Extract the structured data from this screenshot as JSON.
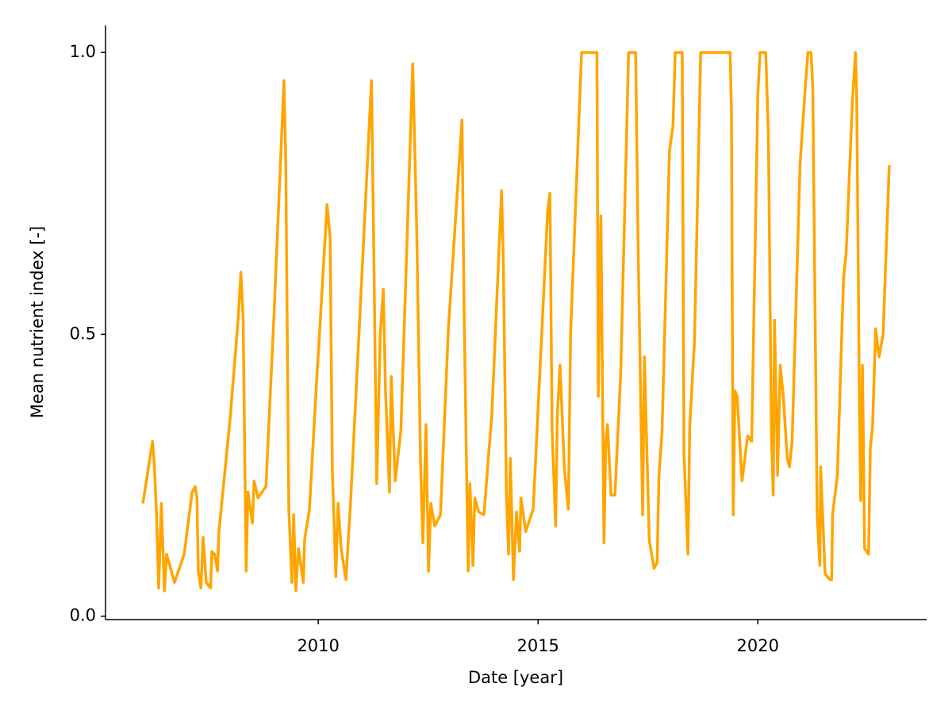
{
  "chart_data": {
    "type": "line",
    "xlabel": "Date [year]",
    "ylabel": "Mean nutrient index [-]",
    "color": "#ffa500",
    "grid": false,
    "xlim": [
      2005.16,
      2023.84
    ],
    "ylim": [
      -0.006,
      1.048
    ],
    "xticks": [
      2010,
      2015,
      2020
    ],
    "yticks": [
      {
        "value": 0,
        "label": "0.0"
      },
      0.5,
      {
        "value": 1,
        "label": "1.0"
      }
    ],
    "x": [
      2006.01,
      2006.23,
      2006.27,
      2006.32,
      2006.37,
      2006.43,
      2006.5,
      2006.55,
      2006.73,
      2006.95,
      2007.13,
      2007.2,
      2007.24,
      2007.27,
      2007.33,
      2007.38,
      2007.45,
      2007.55,
      2007.58,
      2007.64,
      2007.71,
      2007.74,
      2008.0,
      2008.18,
      2008.24,
      2008.29,
      2008.36,
      2008.4,
      2008.5,
      2008.54,
      2008.63,
      2008.81,
      2008.99,
      2009.22,
      2009.26,
      2009.33,
      2009.4,
      2009.44,
      2009.49,
      2009.55,
      2009.66,
      2009.69,
      2009.8,
      2009.95,
      2010.02,
      2010.2,
      2010.27,
      2010.32,
      2010.4,
      2010.45,
      2010.52,
      2010.63,
      2010.74,
      2010.99,
      2011.21,
      2011.26,
      2011.33,
      2011.41,
      2011.48,
      2011.53,
      2011.62,
      2011.66,
      2011.75,
      2011.88,
      2012.15,
      2012.24,
      2012.33,
      2012.38,
      2012.45,
      2012.51,
      2012.56,
      2012.65,
      2012.78,
      2012.96,
      2013.27,
      2013.32,
      2013.41,
      2013.45,
      2013.52,
      2013.56,
      2013.65,
      2013.77,
      2013.95,
      2014.17,
      2014.21,
      2014.28,
      2014.33,
      2014.37,
      2014.44,
      2014.51,
      2014.58,
      2014.61,
      2014.72,
      2014.89,
      2015.22,
      2015.27,
      2015.32,
      2015.4,
      2015.44,
      2015.5,
      2015.6,
      2015.69,
      2015.74,
      2015.99,
      2016.34,
      2016.37,
      2016.43,
      2016.5,
      2016.54,
      2016.58,
      2016.66,
      2016.75,
      2016.88,
      2017.06,
      2017.22,
      2017.28,
      2017.38,
      2017.42,
      2017.53,
      2017.64,
      2017.71,
      2017.75,
      2017.82,
      2017.99,
      2018.07,
      2018.12,
      2018.28,
      2018.32,
      2018.41,
      2018.45,
      2018.56,
      2018.7,
      2019.37,
      2019.4,
      2019.44,
      2019.48,
      2019.53,
      2019.64,
      2019.77,
      2019.86,
      2020.0,
      2020.05,
      2020.18,
      2020.24,
      2020.31,
      2020.35,
      2020.38,
      2020.45,
      2020.51,
      2020.58,
      2020.67,
      2020.72,
      2020.78,
      2020.96,
      2021.08,
      2021.14,
      2021.21,
      2021.25,
      2021.35,
      2021.41,
      2021.43,
      2021.53,
      2021.64,
      2021.68,
      2021.7,
      2021.81,
      2021.95,
      2022.01,
      2022.15,
      2022.22,
      2022.25,
      2022.31,
      2022.34,
      2022.38,
      2022.43,
      2022.52,
      2022.56,
      2022.61,
      2022.68,
      2022.76,
      2022.85,
      2022.99
    ],
    "values": [
      0.2,
      0.31,
      0.27,
      0.18,
      0.05,
      0.2,
      0.045,
      0.11,
      0.06,
      0.11,
      0.22,
      0.23,
      0.21,
      0.08,
      0.05,
      0.14,
      0.06,
      0.05,
      0.115,
      0.11,
      0.08,
      0.15,
      0.355,
      0.53,
      0.61,
      0.53,
      0.08,
      0.22,
      0.165,
      0.24,
      0.21,
      0.23,
      0.53,
      0.95,
      0.81,
      0.19,
      0.06,
      0.18,
      0.045,
      0.12,
      0.06,
      0.136,
      0.19,
      0.4,
      0.49,
      0.73,
      0.67,
      0.26,
      0.07,
      0.2,
      0.12,
      0.065,
      0.21,
      0.6,
      0.95,
      0.67,
      0.235,
      0.5,
      0.58,
      0.4,
      0.22,
      0.425,
      0.24,
      0.33,
      0.98,
      0.685,
      0.26,
      0.13,
      0.34,
      0.08,
      0.2,
      0.16,
      0.18,
      0.51,
      0.88,
      0.53,
      0.08,
      0.235,
      0.09,
      0.21,
      0.185,
      0.18,
      0.36,
      0.755,
      0.63,
      0.22,
      0.11,
      0.28,
      0.065,
      0.185,
      0.115,
      0.21,
      0.15,
      0.19,
      0.72,
      0.75,
      0.33,
      0.16,
      0.36,
      0.445,
      0.26,
      0.19,
      0.5,
      1.0,
      1.0,
      0.39,
      0.71,
      0.13,
      0.305,
      0.34,
      0.215,
      0.215,
      0.43,
      1.0,
      1.0,
      0.64,
      0.18,
      0.46,
      0.135,
      0.085,
      0.095,
      0.25,
      0.325,
      0.825,
      0.87,
      1.0,
      1.0,
      0.29,
      0.11,
      0.335,
      0.49,
      1.0,
      1.0,
      0.895,
      0.18,
      0.4,
      0.39,
      0.24,
      0.32,
      0.31,
      0.925,
      1.0,
      1.0,
      0.855,
      0.32,
      0.215,
      0.525,
      0.25,
      0.445,
      0.39,
      0.28,
      0.265,
      0.31,
      0.8,
      0.94,
      1.0,
      1.0,
      0.94,
      0.18,
      0.09,
      0.265,
      0.075,
      0.065,
      0.065,
      0.18,
      0.25,
      0.6,
      0.645,
      0.91,
      1.0,
      0.92,
      0.39,
      0.205,
      0.445,
      0.12,
      0.11,
      0.3,
      0.335,
      0.51,
      0.46,
      0.5,
      0.8
    ]
  }
}
